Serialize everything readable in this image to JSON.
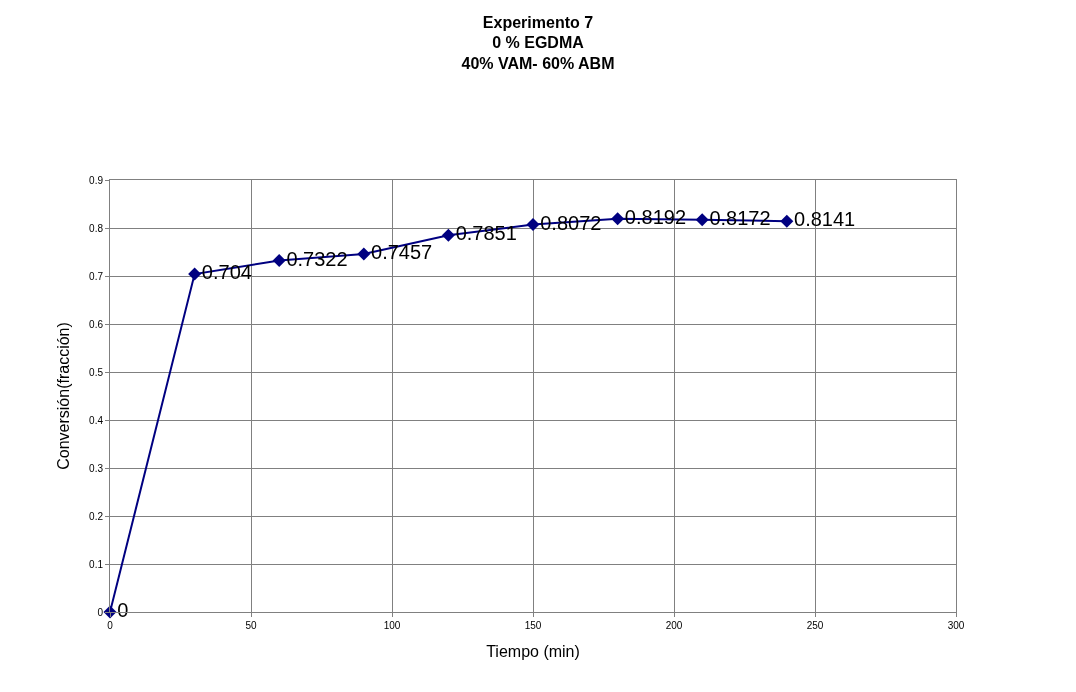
{
  "chart_data": {
    "type": "line",
    "title": "Experimento 7\n0 % EGDMA\n40% VAM- 60% ABM",
    "xlabel": "Tiempo (min)",
    "ylabel": "Conversión(fracción)",
    "x": [
      0,
      30,
      60,
      90,
      120,
      150,
      180,
      210,
      240
    ],
    "series": [
      {
        "color": "#000080",
        "values": [
          0,
          0.704,
          0.7322,
          0.7457,
          0.7851,
          0.8072,
          0.8192,
          0.8172,
          0.8141
        ]
      }
    ],
    "xlim": [
      0,
      300
    ],
    "xticks": [
      0,
      50,
      100,
      150,
      200,
      250,
      300
    ],
    "ylim": [
      0,
      0.9
    ],
    "yticks": [
      0,
      0.1,
      0.2,
      0.3,
      0.4,
      0.5,
      0.6,
      0.7,
      0.8,
      0.9
    ],
    "grid": true,
    "marker": "diamond",
    "line_style": "solid",
    "data_labels": true,
    "legend": false
  }
}
